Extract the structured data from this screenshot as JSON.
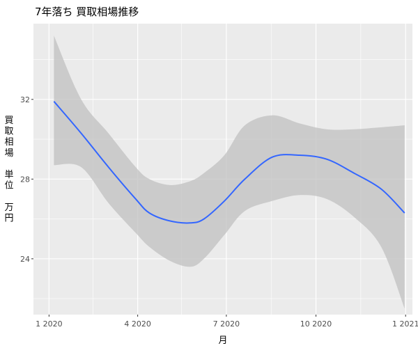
{
  "chart_data": {
    "type": "line",
    "title": "7年落ち 買取相場推移",
    "xlabel": "月",
    "ylabel": "買取相場　単位　万円",
    "ylabel_chars": [
      "買",
      "取",
      "相",
      "場",
      "",
      "単",
      "位",
      "",
      "万",
      "円"
    ],
    "x_ticks": [
      "1 2020",
      "4 2020",
      "7 2020",
      "10 2020",
      "1 2021"
    ],
    "y_ticks": [
      24,
      28,
      32
    ],
    "xlim": [
      "2019-12-16",
      "2021-01-08"
    ],
    "ylim": [
      21.2,
      35.8
    ],
    "grid": true,
    "legend": "none",
    "colors": {
      "line": "#3366FF",
      "ribbon": "#BEBEBE",
      "panel": "#EBEBEB",
      "grid": "#FFFFFF"
    },
    "series": [
      {
        "type": "smooth",
        "x": [
          "2020-01-06",
          "2020-02-03",
          "2020-03-02",
          "2020-03-30",
          "2020-04-13",
          "2020-05-04",
          "2020-05-25",
          "2020-06-08",
          "2020-06-29",
          "2020-07-20",
          "2020-08-17",
          "2020-09-14",
          "2020-10-12",
          "2020-11-09",
          "2020-12-07",
          "2020-12-31"
        ],
        "y": [
          31.9,
          30.3,
          28.6,
          27.0,
          26.3,
          25.9,
          25.8,
          26.0,
          26.9,
          28.0,
          29.1,
          29.2,
          29.0,
          28.3,
          27.5,
          26.3
        ],
        "ymin": [
          28.7,
          28.6,
          26.8,
          25.3,
          24.6,
          23.9,
          23.6,
          24.0,
          25.2,
          26.4,
          26.9,
          27.2,
          27.0,
          26.1,
          24.6,
          21.5
        ],
        "ymax": [
          35.2,
          32.0,
          30.3,
          28.6,
          28.0,
          27.7,
          27.9,
          28.3,
          29.2,
          30.7,
          31.2,
          30.8,
          30.5,
          30.5,
          30.6,
          30.7
        ]
      }
    ]
  }
}
